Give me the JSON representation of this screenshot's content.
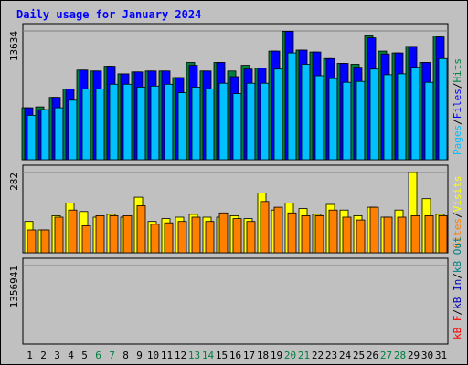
{
  "title": "Daily usage for January 2024",
  "colors": {
    "pages": "#00c0ff",
    "files": "#0000ff",
    "hits": "#008040",
    "visits": "#ffff00",
    "sites": "#ff8000",
    "kbout": "#008080",
    "kbin": "#0000c0",
    "kbf": "#ff0000",
    "title": "#0000ff",
    "weekend": "#008040"
  },
  "chart_data": [
    {
      "type": "bar",
      "name": "hits-files-pages",
      "ymax_label": "13634",
      "ylim": [
        0,
        13634
      ],
      "axis_label_parts": [
        "Pages",
        "Files",
        "Hits"
      ],
      "categories": [
        "1",
        "2",
        "3",
        "4",
        "5",
        "6",
        "7",
        "8",
        "9",
        "10",
        "11",
        "12",
        "13",
        "14",
        "15",
        "16",
        "17",
        "18",
        "19",
        "20",
        "21",
        "22",
        "23",
        "24",
        "25",
        "26",
        "27",
        "28",
        "29",
        "30",
        "31"
      ],
      "series": [
        {
          "name": "Hits",
          "values": [
            5500,
            5600,
            6600,
            7500,
            9500,
            9400,
            9900,
            9100,
            9300,
            9400,
            9400,
            8700,
            10300,
            9400,
            10300,
            9400,
            10000,
            9700,
            11500,
            13600,
            11600,
            11400,
            10700,
            10200,
            10100,
            13200,
            11500,
            11300,
            12000,
            10300,
            13100
          ]
        },
        {
          "name": "Files",
          "values": [
            5500,
            5300,
            6600,
            7500,
            9500,
            9400,
            9900,
            9100,
            9300,
            9400,
            9400,
            8700,
            10000,
            9400,
            10300,
            8800,
            9600,
            9700,
            11500,
            13600,
            11600,
            11400,
            10700,
            10200,
            9800,
            12900,
            11200,
            11300,
            12000,
            10300,
            13000
          ]
        },
        {
          "name": "Pages",
          "values": [
            4700,
            5300,
            5500,
            6300,
            7500,
            7500,
            8000,
            8000,
            7700,
            7800,
            8000,
            7100,
            7700,
            7500,
            8100,
            7000,
            8100,
            8100,
            9600,
            11300,
            10100,
            8900,
            8600,
            8200,
            8300,
            9600,
            9000,
            9100,
            9800,
            8200,
            10700
          ]
        }
      ]
    },
    {
      "type": "bar",
      "name": "visits-sites",
      "ymax_label": "282",
      "ylim": [
        0,
        282
      ],
      "axis_label_parts": [
        "Sites",
        "Visits"
      ],
      "categories": [
        "1",
        "2",
        "3",
        "4",
        "5",
        "6",
        "7",
        "8",
        "9",
        "10",
        "11",
        "12",
        "13",
        "14",
        "15",
        "16",
        "17",
        "18",
        "19",
        "20",
        "21",
        "22",
        "23",
        "24",
        "25",
        "26",
        "27",
        "28",
        "29",
        "30",
        "31"
      ],
      "series": [
        {
          "name": "Visits",
          "values": [
            110,
            80,
            130,
            175,
            145,
            125,
            135,
            125,
            195,
            110,
            120,
            125,
            135,
            125,
            125,
            130,
            120,
            210,
            150,
            175,
            155,
            135,
            170,
            150,
            130,
            160,
            125,
            150,
            282,
            190,
            135
          ]
        },
        {
          "name": "Sites",
          "values": [
            80,
            80,
            125,
            150,
            95,
            130,
            130,
            130,
            165,
            100,
            105,
            110,
            125,
            110,
            140,
            120,
            110,
            180,
            160,
            140,
            130,
            130,
            150,
            125,
            115,
            160,
            125,
            125,
            130,
            130,
            130
          ]
        }
      ]
    },
    {
      "type": "bar",
      "name": "kbytes",
      "ymax_label": "1356941",
      "ylim": [
        0,
        1356941
      ],
      "axis_label_parts": [
        "kB F",
        "kB In",
        "kB Out"
      ],
      "categories": [
        "1",
        "2",
        "3",
        "4",
        "5",
        "6",
        "7",
        "8",
        "9",
        "10",
        "11",
        "12",
        "13",
        "14",
        "15",
        "16",
        "17",
        "18",
        "19",
        "20",
        "21",
        "22",
        "23",
        "24",
        "25",
        "26",
        "27",
        "28",
        "29",
        "30",
        "31"
      ],
      "series": [
        {
          "name": "kB F",
          "values": [
            570,
            550,
            650,
            750,
            850,
            850,
            870,
            840,
            760,
            790,
            860,
            720,
            780,
            780,
            810,
            700,
            690,
            900,
            1200,
            1250,
            1180,
            1170,
            1130,
            1060,
            880,
            1640,
            1230,
            1230,
            1230,
            1160,
            1440
          ]
        }
      ]
    }
  ]
}
